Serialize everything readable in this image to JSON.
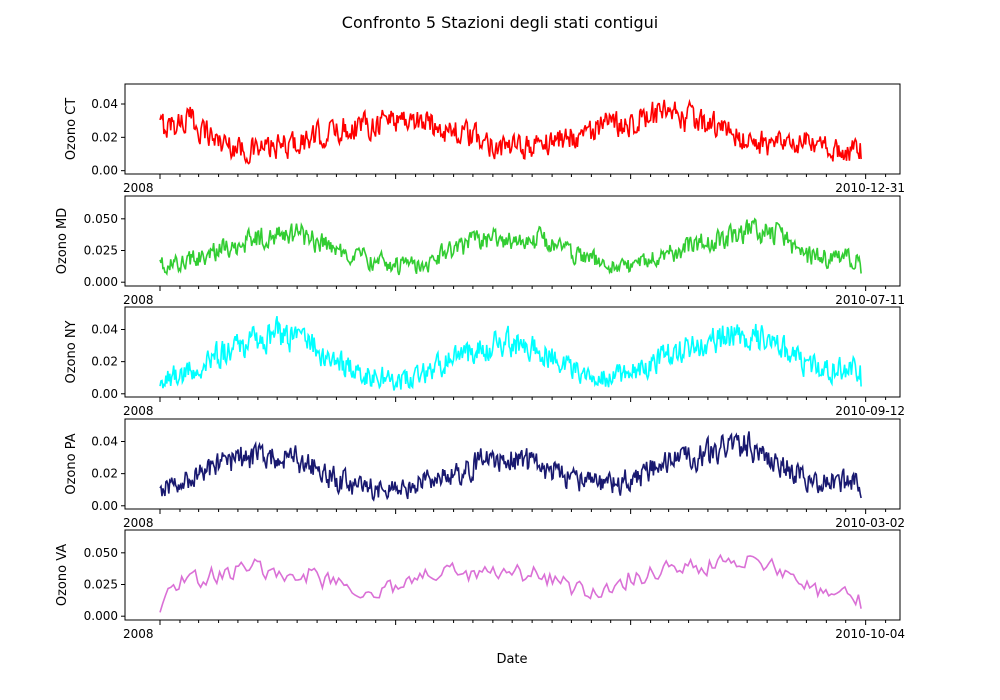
{
  "chart_data": {
    "type": "line",
    "title": "Confronto 5 Stazioni degli stati contigui",
    "xlabel": "Date",
    "x_range": [
      "2008-01-01",
      "2010-12-31"
    ],
    "date_tick_labels": {
      "ct": {
        "first": "2008",
        "last": "2010-12-31"
      },
      "md": {
        "first": "2008",
        "last": "2010-07-11"
      },
      "ny": {
        "first": "2008",
        "last": "2010-09-12"
      },
      "pa": {
        "first": "2008",
        "last": "2010-03-02"
      },
      "va": {
        "first": "2008",
        "last": "2010-10-04"
      }
    },
    "panels": [
      {
        "id": "ct",
        "ylabel": "Ozono CT",
        "color": "#ff0000",
        "ylim": [
          -0.002,
          0.052
        ],
        "yticks": [
          0.0,
          0.02,
          0.04
        ],
        "ytick_labels": [
          "0.00",
          "0.02",
          "0.04"
        ],
        "samples": 720,
        "series": [
          {
            "x": "2008-01-01",
            "y": 0.026
          },
          {
            "x": "2008-02-15",
            "y": 0.031
          },
          {
            "x": "2008-04-01",
            "y": 0.018
          },
          {
            "x": "2008-05-15",
            "y": 0.012
          },
          {
            "x": "2008-07-01",
            "y": 0.014
          },
          {
            "x": "2008-08-15",
            "y": 0.018
          },
          {
            "x": "2008-10-01",
            "y": 0.024
          },
          {
            "x": "2008-11-15",
            "y": 0.028
          },
          {
            "x": "2009-01-01",
            "y": 0.032
          },
          {
            "x": "2009-02-15",
            "y": 0.029
          },
          {
            "x": "2009-04-01",
            "y": 0.024
          },
          {
            "x": "2009-05-15",
            "y": 0.018
          },
          {
            "x": "2009-07-01",
            "y": 0.013
          },
          {
            "x": "2009-08-15",
            "y": 0.016
          },
          {
            "x": "2009-10-01",
            "y": 0.021
          },
          {
            "x": "2009-11-15",
            "y": 0.025
          },
          {
            "x": "2010-01-01",
            "y": 0.03
          },
          {
            "x": "2010-02-15",
            "y": 0.033
          },
          {
            "x": "2010-04-01",
            "y": 0.031
          },
          {
            "x": "2010-05-15",
            "y": 0.026
          },
          {
            "x": "2010-07-01",
            "y": 0.018
          },
          {
            "x": "2010-08-15",
            "y": 0.015
          },
          {
            "x": "2010-10-01",
            "y": 0.016
          },
          {
            "x": "2010-11-15",
            "y": 0.012
          }
        ]
      },
      {
        "id": "md",
        "ylabel": "Ozono MD",
        "color": "#32cd32",
        "ylim": [
          -0.003,
          0.068
        ],
        "yticks": [
          0.0,
          0.025,
          0.05
        ],
        "ytick_labels": [
          "0.000",
          "0.025",
          "0.050"
        ],
        "samples": 720,
        "series": [
          {
            "x": "2008-01-01",
            "y": 0.012
          },
          {
            "x": "2008-02-15",
            "y": 0.016
          },
          {
            "x": "2008-04-01",
            "y": 0.025
          },
          {
            "x": "2008-05-15",
            "y": 0.033
          },
          {
            "x": "2008-07-01",
            "y": 0.038
          },
          {
            "x": "2008-08-15",
            "y": 0.036
          },
          {
            "x": "2008-10-01",
            "y": 0.026
          },
          {
            "x": "2008-11-15",
            "y": 0.018
          },
          {
            "x": "2009-01-01",
            "y": 0.013
          },
          {
            "x": "2009-02-15",
            "y": 0.014
          },
          {
            "x": "2009-04-01",
            "y": 0.026
          },
          {
            "x": "2009-05-15",
            "y": 0.032
          },
          {
            "x": "2009-07-01",
            "y": 0.035
          },
          {
            "x": "2009-08-15",
            "y": 0.033
          },
          {
            "x": "2009-10-01",
            "y": 0.024
          },
          {
            "x": "2009-11-15",
            "y": 0.015
          },
          {
            "x": "2010-01-01",
            "y": 0.012
          },
          {
            "x": "2010-02-15",
            "y": 0.02
          },
          {
            "x": "2010-04-01",
            "y": 0.029
          },
          {
            "x": "2010-05-15",
            "y": 0.034
          },
          {
            "x": "2010-07-01",
            "y": 0.04
          },
          {
            "x": "2010-08-15",
            "y": 0.038
          },
          {
            "x": "2010-10-01",
            "y": 0.02
          },
          {
            "x": "2010-11-15",
            "y": 0.018
          }
        ]
      },
      {
        "id": "ny",
        "ylabel": "Ozono NY",
        "color": "#00ffff",
        "ylim": [
          -0.002,
          0.054
        ],
        "yticks": [
          0.0,
          0.02,
          0.04
        ],
        "ytick_labels": [
          "0.00",
          "0.02",
          "0.04"
        ],
        "samples": 720,
        "series": [
          {
            "x": "2008-01-01",
            "y": 0.008
          },
          {
            "x": "2008-02-15",
            "y": 0.014
          },
          {
            "x": "2008-04-01",
            "y": 0.024
          },
          {
            "x": "2008-05-15",
            "y": 0.031
          },
          {
            "x": "2008-07-01",
            "y": 0.037
          },
          {
            "x": "2008-08-15",
            "y": 0.032
          },
          {
            "x": "2008-10-01",
            "y": 0.02
          },
          {
            "x": "2008-11-15",
            "y": 0.012
          },
          {
            "x": "2009-01-01",
            "y": 0.008
          },
          {
            "x": "2009-02-15",
            "y": 0.013
          },
          {
            "x": "2009-04-01",
            "y": 0.022
          },
          {
            "x": "2009-05-15",
            "y": 0.028
          },
          {
            "x": "2009-07-01",
            "y": 0.032
          },
          {
            "x": "2009-08-15",
            "y": 0.026
          },
          {
            "x": "2009-10-01",
            "y": 0.016
          },
          {
            "x": "2009-11-15",
            "y": 0.011
          },
          {
            "x": "2010-01-01",
            "y": 0.013
          },
          {
            "x": "2010-02-15",
            "y": 0.022
          },
          {
            "x": "2010-04-01",
            "y": 0.029
          },
          {
            "x": "2010-05-15",
            "y": 0.035
          },
          {
            "x": "2010-07-01",
            "y": 0.038
          },
          {
            "x": "2010-08-15",
            "y": 0.03
          },
          {
            "x": "2010-10-01",
            "y": 0.018
          },
          {
            "x": "2010-11-15",
            "y": 0.015
          }
        ]
      },
      {
        "id": "pa",
        "ylabel": "Ozono PA",
        "color": "#191970",
        "ylim": [
          -0.002,
          0.054
        ],
        "yticks": [
          0.0,
          0.02,
          0.04
        ],
        "ytick_labels": [
          "0.00",
          "0.02",
          "0.04"
        ],
        "samples": 720,
        "series": [
          {
            "x": "2008-01-01",
            "y": 0.012
          },
          {
            "x": "2008-02-15",
            "y": 0.016
          },
          {
            "x": "2008-04-01",
            "y": 0.025
          },
          {
            "x": "2008-05-15",
            "y": 0.03
          },
          {
            "x": "2008-07-01",
            "y": 0.032
          },
          {
            "x": "2008-08-15",
            "y": 0.027
          },
          {
            "x": "2008-10-01",
            "y": 0.016
          },
          {
            "x": "2008-11-15",
            "y": 0.011
          },
          {
            "x": "2009-01-01",
            "y": 0.01
          },
          {
            "x": "2009-02-15",
            "y": 0.014
          },
          {
            "x": "2009-04-01",
            "y": 0.021
          },
          {
            "x": "2009-05-15",
            "y": 0.027
          },
          {
            "x": "2009-07-01",
            "y": 0.03
          },
          {
            "x": "2009-08-15",
            "y": 0.025
          },
          {
            "x": "2009-10-01",
            "y": 0.016
          },
          {
            "x": "2009-11-15",
            "y": 0.013
          },
          {
            "x": "2010-01-01",
            "y": 0.016
          },
          {
            "x": "2010-02-15",
            "y": 0.024
          },
          {
            "x": "2010-04-01",
            "y": 0.03
          },
          {
            "x": "2010-05-15",
            "y": 0.034
          },
          {
            "x": "2010-07-01",
            "y": 0.038
          },
          {
            "x": "2010-08-15",
            "y": 0.028
          },
          {
            "x": "2010-10-01",
            "y": 0.016
          },
          {
            "x": "2010-11-15",
            "y": 0.014
          }
        ]
      },
      {
        "id": "va",
        "ylabel": "Ozono VA",
        "color": "#da70d6",
        "ylim": [
          -0.003,
          0.068
        ],
        "yticks": [
          0.0,
          0.025,
          0.05
        ],
        "ytick_labels": [
          "0.000",
          "0.025",
          "0.050"
        ],
        "samples": 260,
        "series": [
          {
            "x": "2008-01-01",
            "y": 0.004
          },
          {
            "x": "2008-01-20",
            "y": 0.028
          },
          {
            "x": "2008-02-15",
            "y": 0.03
          },
          {
            "x": "2008-04-01",
            "y": 0.034
          },
          {
            "x": "2008-05-15",
            "y": 0.036
          },
          {
            "x": "2008-07-01",
            "y": 0.038
          },
          {
            "x": "2008-08-15",
            "y": 0.034
          },
          {
            "x": "2008-10-01",
            "y": 0.024
          },
          {
            "x": "2008-11-15",
            "y": 0.018
          },
          {
            "x": "2009-01-01",
            "y": 0.022
          },
          {
            "x": "2009-02-15",
            "y": 0.032
          },
          {
            "x": "2009-04-01",
            "y": 0.034
          },
          {
            "x": "2009-05-15",
            "y": 0.033
          },
          {
            "x": "2009-07-01",
            "y": 0.034
          },
          {
            "x": "2009-08-15",
            "y": 0.032
          },
          {
            "x": "2009-10-01",
            "y": 0.022
          },
          {
            "x": "2009-11-15",
            "y": 0.015
          },
          {
            "x": "2010-01-01",
            "y": 0.032
          },
          {
            "x": "2010-02-15",
            "y": 0.036
          },
          {
            "x": "2010-04-01",
            "y": 0.04
          },
          {
            "x": "2010-05-15",
            "y": 0.042
          },
          {
            "x": "2010-07-01",
            "y": 0.044
          },
          {
            "x": "2010-08-15",
            "y": 0.036
          },
          {
            "x": "2010-10-01",
            "y": 0.024
          },
          {
            "x": "2010-11-15",
            "y": 0.016
          }
        ]
      }
    ]
  }
}
